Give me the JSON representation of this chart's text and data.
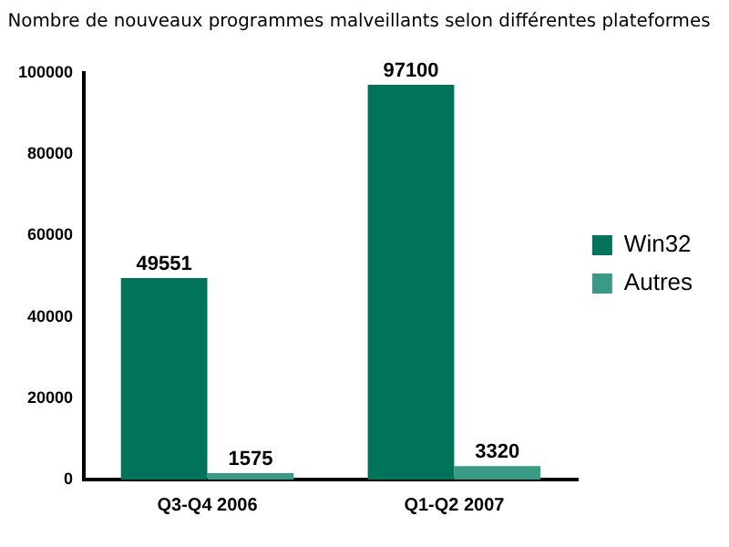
{
  "chart_data": {
    "type": "bar",
    "title": "Nombre de nouveaux programmes malveillants selon différentes plateformes",
    "categories": [
      "Q3-Q4 2006",
      "Q1-Q2 2007"
    ],
    "series": [
      {
        "name": "Win32",
        "color": "#00735a",
        "values": [
          49551,
          97100
        ]
      },
      {
        "name": "Autres",
        "color": "#3a9a86",
        "values": [
          1575,
          3320
        ]
      }
    ],
    "ylim": [
      0,
      100000
    ],
    "yticks": [
      0,
      20000,
      40000,
      60000,
      80000,
      100000
    ],
    "grid": false,
    "legend": "right",
    "data_labels": true
  }
}
